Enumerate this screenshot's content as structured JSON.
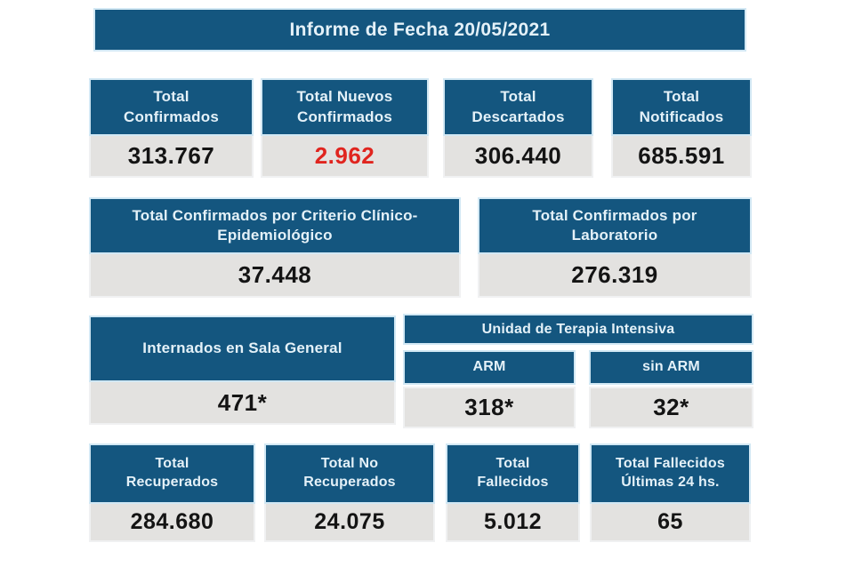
{
  "header": {
    "title": "Informe de Fecha 20/05/2021"
  },
  "colors": {
    "blue": "#14567F",
    "gray": "#E3E2E0",
    "red": "#E0251F",
    "dark": "#141414",
    "header_text": "#E4F1F8"
  },
  "row1": {
    "cards": [
      {
        "label": "Total\nConfirmados",
        "value": "313.767"
      },
      {
        "label": "Total Nuevos\nConfirmados",
        "value": "2.962"
      },
      {
        "label": "Total\nDescartados",
        "value": "306.440"
      },
      {
        "label": "Total\nNotificados",
        "value": "685.591"
      }
    ]
  },
  "row2": {
    "cards": [
      {
        "label": "Total Confirmados por Criterio Clínico-\nEpidemiológico",
        "value": "37.448"
      },
      {
        "label": "Total Confirmados por\nLaboratorio",
        "value": "276.319"
      }
    ]
  },
  "row3": {
    "left": {
      "label": "Internados en Sala General",
      "value": "471*"
    },
    "uti": {
      "title": "Unidad de Terapia Intensiva",
      "columns": [
        {
          "label": "ARM",
          "value": "318*"
        },
        {
          "label": "sin ARM",
          "value": "32*"
        }
      ]
    }
  },
  "row4": {
    "cards": [
      {
        "label": "Total\nRecuperados",
        "value": "284.680"
      },
      {
        "label": "Total No\nRecuperados",
        "value": "24.075"
      },
      {
        "label": "Total\nFallecidos",
        "value": "5.012"
      },
      {
        "label": "Total Fallecidos\nÚltimas 24 hs.",
        "value": "65"
      }
    ]
  },
  "chart_data": {
    "type": "table",
    "title": "Informe de Fecha 20/05/2021",
    "metrics": [
      {
        "label": "Total Confirmados",
        "value": 313767
      },
      {
        "label": "Total Nuevos Confirmados",
        "value": 2962
      },
      {
        "label": "Total Descartados",
        "value": 306440
      },
      {
        "label": "Total Notificados",
        "value": 685591
      },
      {
        "label": "Total Confirmados por Criterio Clínico-Epidemiológico",
        "value": 37448
      },
      {
        "label": "Total Confirmados por Laboratorio",
        "value": 276319
      },
      {
        "label": "Internados en Sala General",
        "value": "471*"
      },
      {
        "label": "Unidad de Terapia Intensiva - ARM",
        "value": "318*"
      },
      {
        "label": "Unidad de Terapia Intensiva - sin ARM",
        "value": "32*"
      },
      {
        "label": "Total Recuperados",
        "value": 284680
      },
      {
        "label": "Total No Recuperados",
        "value": 24075
      },
      {
        "label": "Total Fallecidos",
        "value": 5012
      },
      {
        "label": "Total Fallecidos Últimas 24 hs.",
        "value": 65
      }
    ]
  }
}
